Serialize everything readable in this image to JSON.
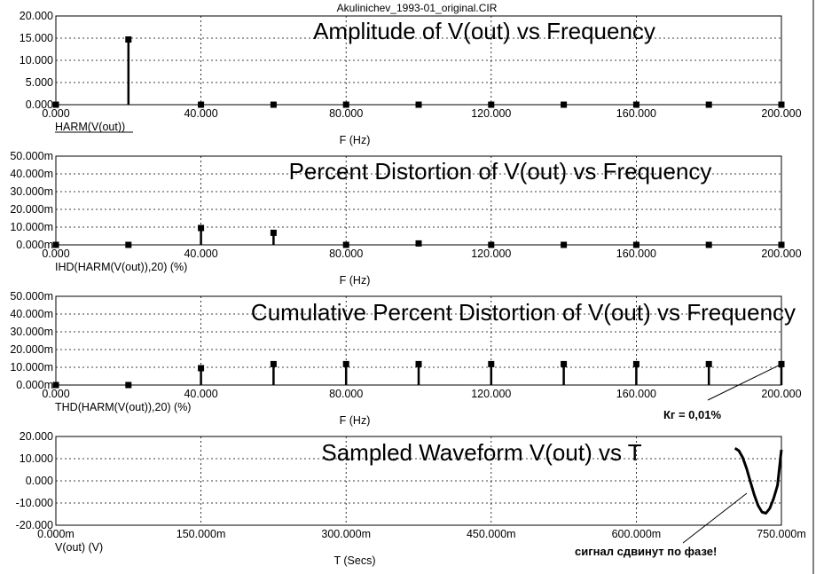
{
  "window_title": "Akulinichev_1993-01_original.CIR",
  "chart_data": [
    {
      "type": "bar",
      "title": "Amplitude of V(out) vs Frequency",
      "trace_label": "HARM(V(out))",
      "xlabel": "F (Hz)",
      "xlim": [
        0,
        200
      ],
      "ylim": [
        0,
        20
      ],
      "x_ticks": [
        0,
        40,
        80,
        120,
        160,
        200
      ],
      "x_tick_labels": [
        "0.000",
        "40.000",
        "80.000",
        "120.000",
        "160.000",
        "200.000"
      ],
      "y_ticks": [
        0,
        5,
        10,
        15,
        20
      ],
      "y_tick_labels": [
        "0.000",
        "5.000",
        "10.000",
        "15.000",
        "20.000"
      ],
      "x": [
        0,
        20,
        40,
        60,
        80,
        100,
        120,
        140,
        160,
        180,
        200
      ],
      "values": [
        0,
        14.7,
        0,
        0,
        0,
        0,
        0,
        0,
        0,
        0,
        0
      ],
      "grid": true
    },
    {
      "type": "bar",
      "title": "Percent Distortion of V(out) vs Frequency",
      "trace_label": "IHD(HARM(V(out)),20) (%)",
      "xlabel": "F (Hz)",
      "xlim": [
        0,
        200
      ],
      "ylim": [
        0,
        0.05
      ],
      "x_ticks": [
        0,
        40,
        80,
        120,
        160,
        200
      ],
      "x_tick_labels": [
        "0.000",
        "40.000",
        "80.000",
        "120.000",
        "160.000",
        "200.000"
      ],
      "y_ticks": [
        0,
        0.01,
        0.02,
        0.03,
        0.04,
        0.05
      ],
      "y_tick_labels": [
        "0.000m",
        "10.000m",
        "20.000m",
        "30.000m",
        "40.000m",
        "50.000m"
      ],
      "x": [
        0,
        20,
        40,
        60,
        80,
        100,
        120,
        140,
        160,
        180,
        200
      ],
      "values": [
        0,
        0,
        0.0095,
        0.0068,
        0,
        0.0008,
        0,
        0,
        0,
        0,
        0
      ],
      "grid": true
    },
    {
      "type": "bar",
      "title": "Cumulative Percent Distortion of V(out) vs Frequency",
      "trace_label": "THD(HARM(V(out)),20) (%)",
      "xlabel": "F (Hz)",
      "xlim": [
        0,
        200
      ],
      "ylim": [
        0,
        0.05
      ],
      "x_ticks": [
        0,
        40,
        80,
        120,
        160,
        200
      ],
      "x_tick_labels": [
        "0.000",
        "40.000",
        "80.000",
        "120.000",
        "160.000",
        "200.000"
      ],
      "y_ticks": [
        0,
        0.01,
        0.02,
        0.03,
        0.04,
        0.05
      ],
      "y_tick_labels": [
        "0.000m",
        "10.000m",
        "20.000m",
        "30.000m",
        "40.000m",
        "50.000m"
      ],
      "x": [
        0,
        20,
        40,
        60,
        80,
        100,
        120,
        140,
        160,
        180,
        200
      ],
      "values": [
        0,
        0,
        0.0095,
        0.0118,
        0.0118,
        0.0118,
        0.0118,
        0.0118,
        0.0118,
        0.0118,
        0.0118
      ],
      "grid": true,
      "annotation": "Кг = 0,01%"
    },
    {
      "type": "line",
      "title": "Sampled Waveform  V(out) vs T",
      "trace_label": "V(out) (V)",
      "xlabel": "T (Secs)",
      "xlim": [
        0,
        0.75
      ],
      "ylim": [
        -20,
        20
      ],
      "x_ticks": [
        0,
        0.15,
        0.3,
        0.45,
        0.6,
        0.75
      ],
      "x_tick_labels": [
        "0.000m",
        "150.000m",
        "300.000m",
        "450.000m",
        "600.000m",
        "750.000m"
      ],
      "y_ticks": [
        -20,
        -10,
        0,
        10,
        20
      ],
      "y_tick_labels": [
        "-20.000",
        "-10.000",
        "0.000",
        "10.000",
        "20.000"
      ],
      "x": [
        0.702,
        0.706,
        0.71,
        0.714,
        0.718,
        0.722,
        0.726,
        0.73,
        0.734,
        0.738,
        0.742,
        0.746,
        0.75
      ],
      "values": [
        14.7,
        13.6,
        10.5,
        5.6,
        -0.5,
        -6.4,
        -11.2,
        -14.1,
        -14.6,
        -12.4,
        -7.9,
        -2.0,
        14.0
      ],
      "grid": true,
      "annotation": "сигнал сдвинут по фазе!"
    }
  ]
}
